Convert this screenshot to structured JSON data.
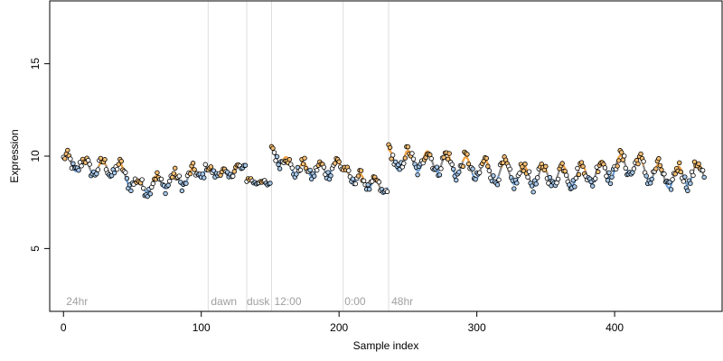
{
  "chart_data": {
    "type": "scatter",
    "title": "",
    "xlabel": "Sample index",
    "ylabel": "Expression",
    "xlim": [
      -10,
      478
    ],
    "ylim": [
      1.6,
      18.4
    ],
    "x_ticks": [
      0,
      100,
      200,
      300,
      400
    ],
    "y_ticks": [
      5,
      10,
      15
    ],
    "grid": false,
    "legend": "none",
    "colors": {
      "axis": "#000000",
      "point_stroke": "#000000",
      "point_fill_default": "#ffffff",
      "point_fill_blue": "#a6c8ea",
      "point_fill_orange": "#f5be73",
      "trend_blue": "#6a9fd8",
      "trend_orange": "#f0a040",
      "trend_gray": "#8c8c8c",
      "divider": "#dddddd",
      "segment_label": "#a0a0a0"
    },
    "dividers": [
      105,
      133,
      151,
      203,
      236
    ],
    "segment_labels": [
      {
        "x": 2,
        "text": "24hr"
      },
      {
        "x": 107,
        "text": "dawn"
      },
      {
        "x": 133,
        "text": "dusk"
      },
      {
        "x": 153,
        "text": "12:00"
      },
      {
        "x": 204,
        "text": "0:00"
      },
      {
        "x": 238,
        "text": "48hr"
      }
    ],
    "segments": [
      {
        "start": 0,
        "end": 105,
        "base": [
          [
            0,
            9.7
          ],
          [
            20,
            9.4
          ],
          [
            40,
            9.3
          ],
          [
            55,
            8.3
          ],
          [
            70,
            8.6
          ],
          [
            90,
            8.8
          ],
          [
            105,
            9.4
          ]
        ],
        "amp": 0.38,
        "period": 13,
        "phase": 0.4,
        "noise": 0.3
      },
      {
        "start": 105,
        "end": 133,
        "base": [
          [
            105,
            9.2
          ],
          [
            120,
            9.0
          ],
          [
            133,
            9.6
          ]
        ],
        "amp": 0.18,
        "period": 10,
        "phase": 1.1,
        "noise": 0.2
      },
      {
        "start": 133,
        "end": 151,
        "base": [
          [
            133,
            8.7
          ],
          [
            151,
            8.5
          ]
        ],
        "amp": 0.1,
        "period": 9,
        "phase": 0.2,
        "noise": 0.12
      },
      {
        "start": 151,
        "end": 203,
        "base": [
          [
            151,
            10.3
          ],
          [
            165,
            9.4
          ],
          [
            185,
            9.2
          ],
          [
            203,
            9.5
          ]
        ],
        "amp": 0.35,
        "period": 12,
        "phase": 2.0,
        "noise": 0.28
      },
      {
        "start": 203,
        "end": 236,
        "base": [
          [
            203,
            9.1
          ],
          [
            220,
            8.6
          ],
          [
            236,
            8.2
          ]
        ],
        "amp": 0.3,
        "period": 11,
        "phase": 0.7,
        "noise": 0.22
      },
      {
        "start": 236,
        "end": 466,
        "base": [
          [
            236,
            9.8
          ],
          [
            270,
            9.7
          ],
          [
            300,
            9.3
          ],
          [
            340,
            8.9
          ],
          [
            380,
            9.0
          ],
          [
            410,
            9.6
          ],
          [
            440,
            8.8
          ],
          [
            466,
            9.2
          ]
        ],
        "amp": 0.55,
        "period": 14,
        "phase": 1.5,
        "noise": 0.33
      }
    ]
  }
}
